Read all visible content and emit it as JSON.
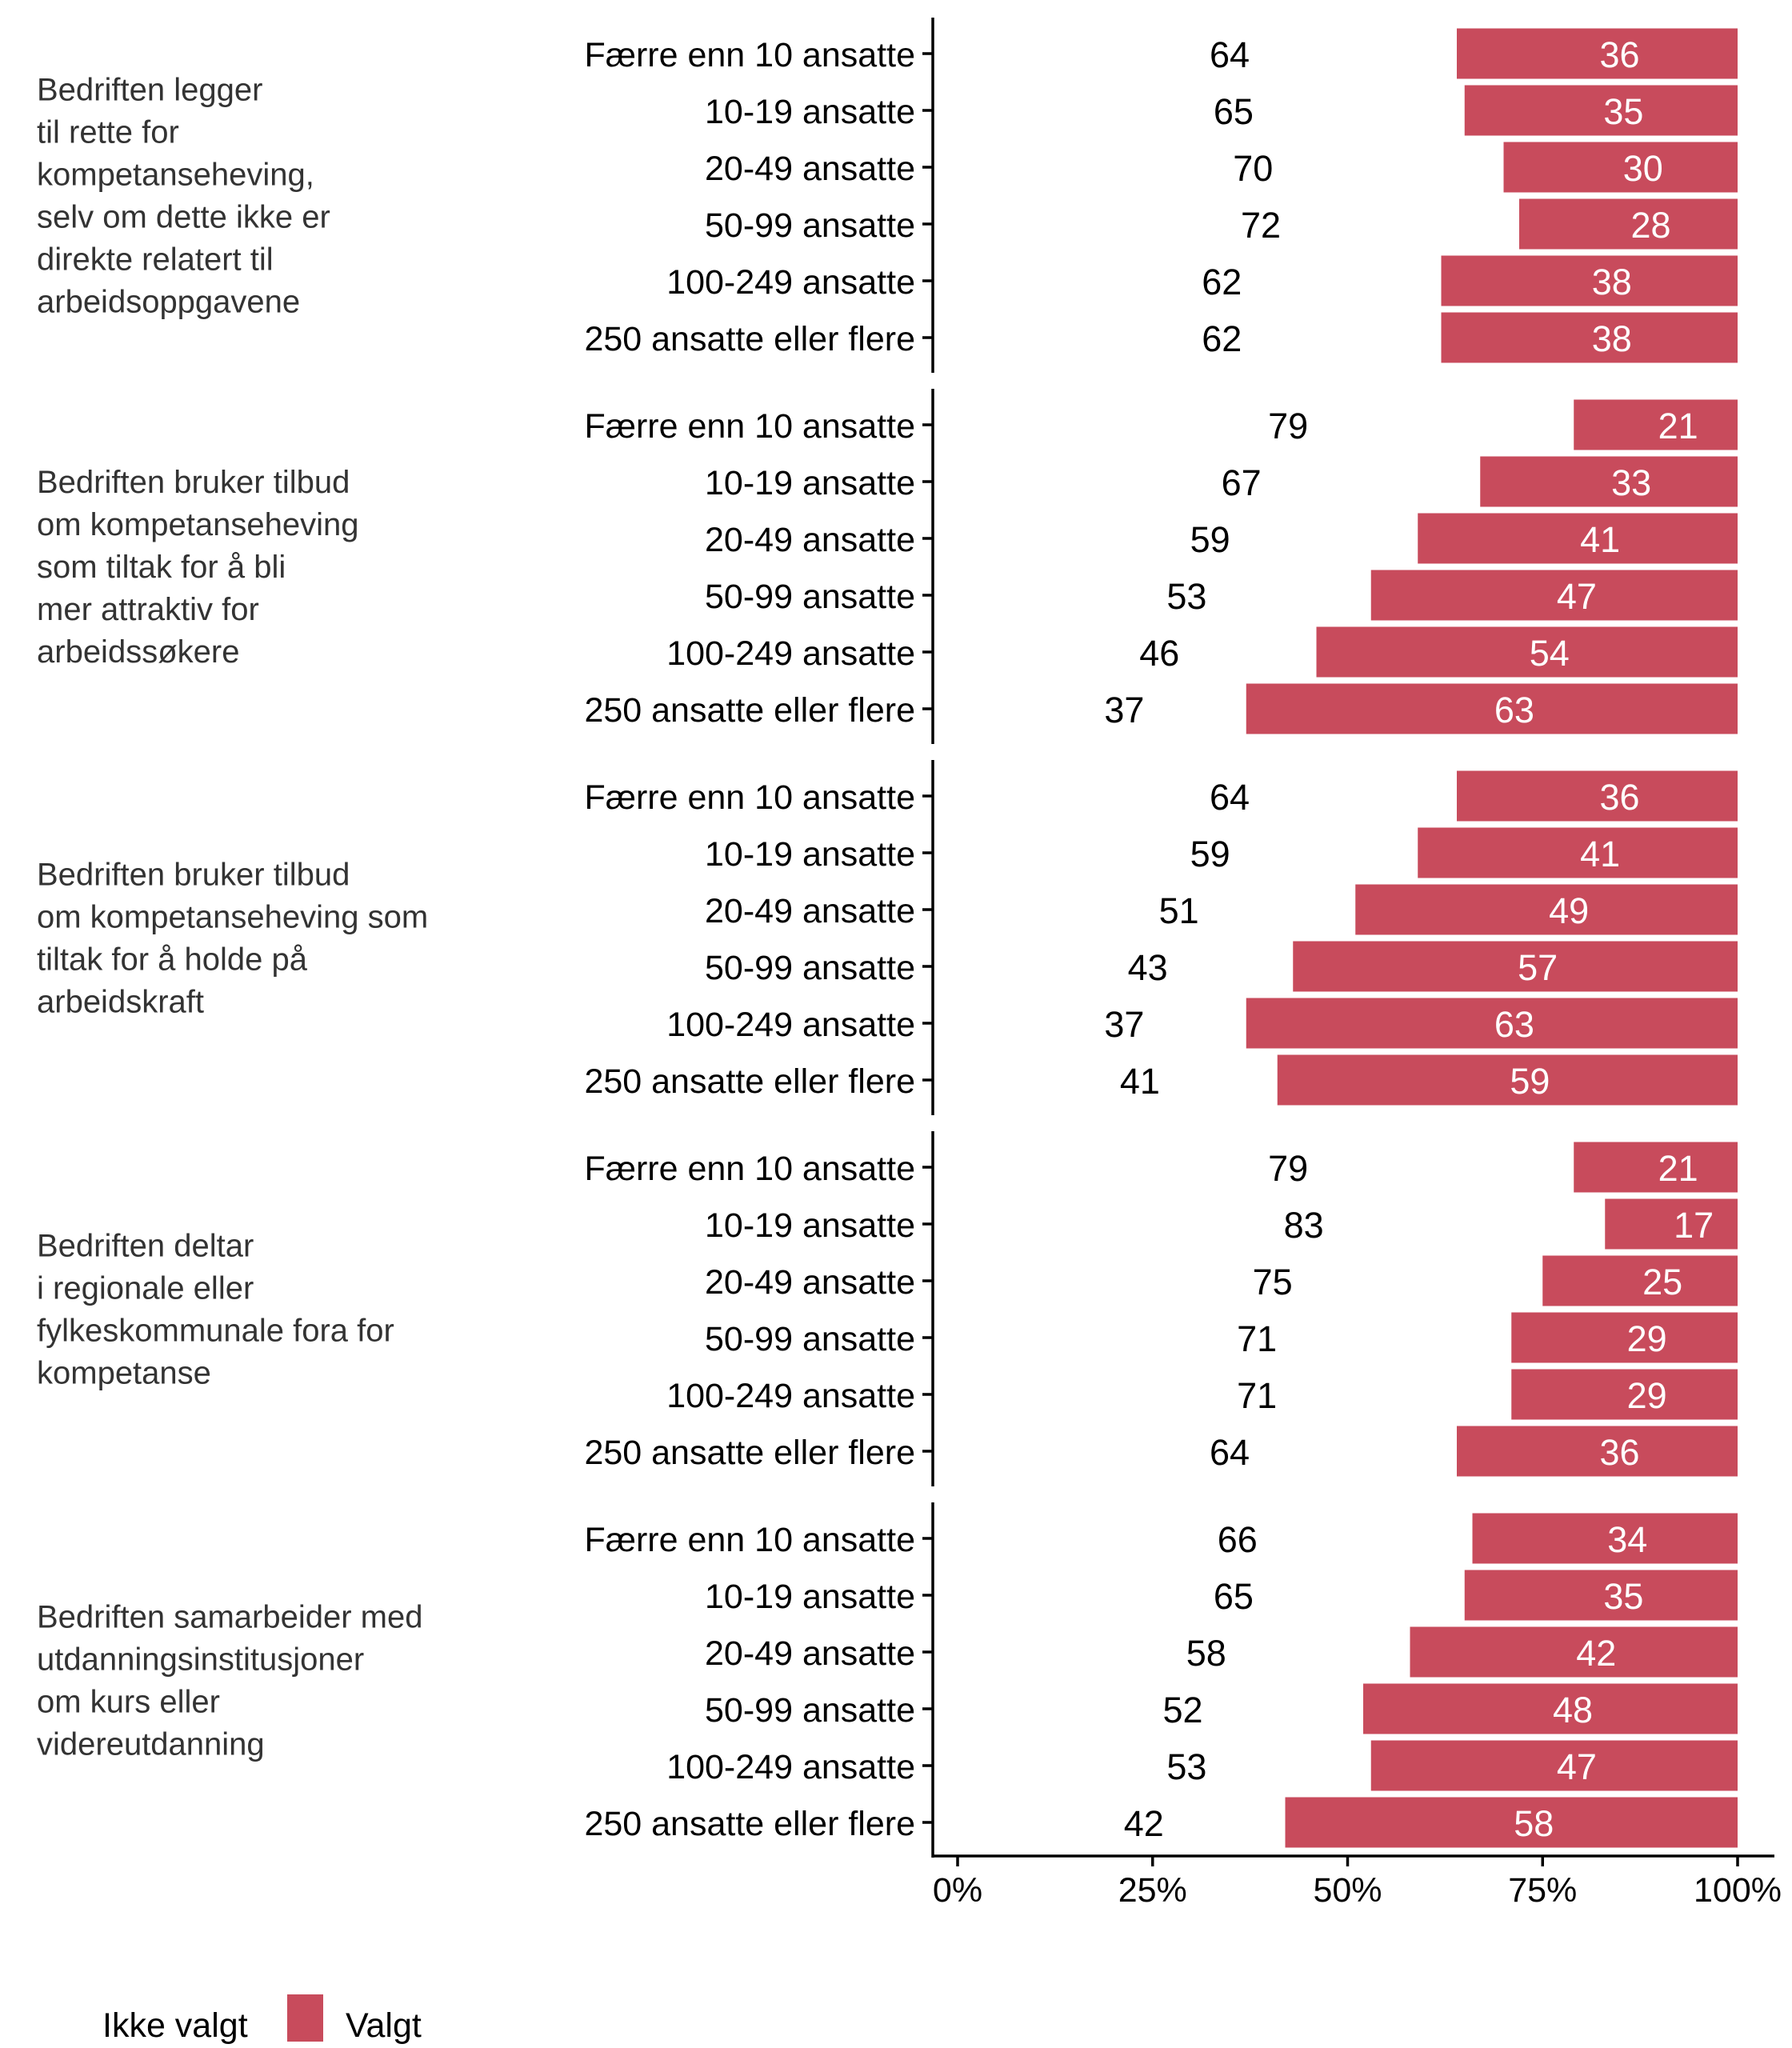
{
  "chart_data": {
    "type": "bar",
    "orientation": "horizontal",
    "stacked": "percent",
    "title": "",
    "xlabel": "",
    "ylabel": "",
    "xlim": [
      0,
      100
    ],
    "x_ticks": [
      "0%",
      "25%",
      "50%",
      "75%",
      "100%"
    ],
    "x_tick_values": [
      0,
      25,
      50,
      75,
      100
    ],
    "grid": false,
    "legend_position": "bottom-left",
    "categories": [
      "Færre enn 10 ansatte",
      "10-19 ansatte",
      "20-49 ansatte",
      "50-99 ansatte",
      "100-249 ansatte",
      "250 ansatte eller flere"
    ],
    "series": [
      {
        "name": "Ikke valgt",
        "color": "#ffffff",
        "label_color": "#000000"
      },
      {
        "name": "Valgt",
        "color": "#C84B5C",
        "label_color": "#ffffff"
      }
    ],
    "panels": [
      {
        "title_lines": [
          "Bedriften legger",
          "til rette for",
          "kompetanseheving,",
          "selv om dette ikke er",
          "direkte relatert til",
          "arbeidsoppgavene"
        ],
        "ikke_valgt": [
          64,
          65,
          70,
          72,
          62,
          62
        ],
        "valgt": [
          36,
          35,
          30,
          28,
          38,
          38
        ]
      },
      {
        "title_lines": [
          "Bedriften bruker tilbud",
          "om kompetanseheving",
          "som tiltak for å bli",
          "mer attraktiv for",
          "arbeidssøkere"
        ],
        "ikke_valgt": [
          79,
          67,
          59,
          53,
          46,
          37
        ],
        "valgt": [
          21,
          33,
          41,
          47,
          54,
          63
        ]
      },
      {
        "title_lines": [
          "Bedriften bruker tilbud",
          "om kompetanseheving som",
          "tiltak for å holde på",
          "arbeidskraft"
        ],
        "ikke_valgt": [
          64,
          59,
          51,
          43,
          37,
          41
        ],
        "valgt": [
          36,
          41,
          49,
          57,
          63,
          59
        ]
      },
      {
        "title_lines": [
          "Bedriften deltar",
          "i regionale eller",
          "fylkeskommunale fora for",
          "kompetanse"
        ],
        "ikke_valgt": [
          79,
          83,
          75,
          71,
          71,
          64
        ],
        "valgt": [
          21,
          17,
          25,
          29,
          29,
          36
        ]
      },
      {
        "title_lines": [
          "Bedriften samarbeider med",
          "utdanningsinstitusjoner",
          "om kurs eller",
          "videreutdanning"
        ],
        "ikke_valgt": [
          66,
          65,
          58,
          52,
          53,
          42
        ],
        "valgt": [
          34,
          35,
          42,
          48,
          47,
          58
        ]
      }
    ]
  },
  "legend": {
    "items": [
      {
        "label": "Ikke valgt",
        "swatch": false
      },
      {
        "label": "Valgt",
        "swatch": true,
        "color": "#C84B5C"
      }
    ]
  }
}
